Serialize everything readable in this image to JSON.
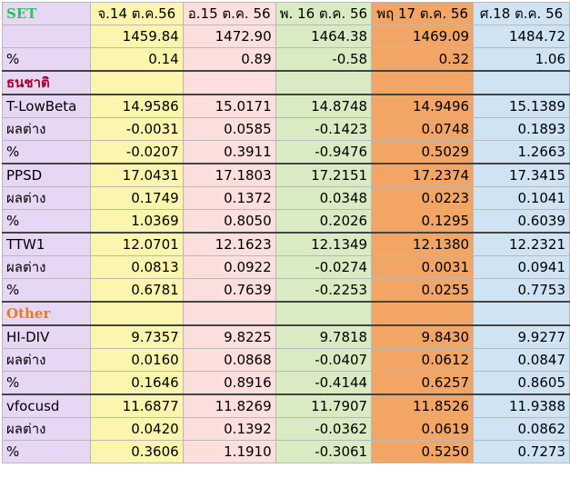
{
  "header": {
    "label": "SET",
    "dates": [
      "จ.14 ต.ค.56",
      "อ.15 ต.ค. 56",
      "พ. 16 ต.ค. 56",
      "พฤ 17 ต.ค. 56",
      "ศ.18 ต.ค. 56"
    ]
  },
  "set_row": {
    "label": "",
    "values": [
      "1459.84",
      "1472.90",
      "1464.38",
      "1469.09",
      "1484.72"
    ]
  },
  "set_pct": {
    "label": "%",
    "values": [
      "0.14",
      "0.89",
      "-0.58",
      "0.32",
      "1.06"
    ]
  },
  "section1": {
    "label": "ธนชาติ"
  },
  "section2": {
    "label": "Other"
  },
  "funds": [
    {
      "name": "T-LowBeta",
      "nav": [
        "14.9586",
        "15.0171",
        "14.8748",
        "14.9496",
        "15.1389"
      ],
      "diff_label": "ผลต่าง",
      "diff": [
        "-0.0031",
        "0.0585",
        "-0.1423",
        "0.0748",
        "0.1893"
      ],
      "pct_label": "%",
      "pct": [
        "-0.0207",
        "0.3911",
        "-0.9476",
        "0.5029",
        "1.2663"
      ]
    },
    {
      "name": "PPSD",
      "nav": [
        "17.0431",
        "17.1803",
        "17.2151",
        "17.2374",
        "17.3415"
      ],
      "diff_label": "ผลต่าง",
      "diff": [
        "0.1749",
        "0.1372",
        "0.0348",
        "0.0223",
        "0.1041"
      ],
      "pct_label": "%",
      "pct": [
        "1.0369",
        "0.8050",
        "0.2026",
        "0.1295",
        "0.6039"
      ]
    },
    {
      "name": "TTW1",
      "nav": [
        "12.0701",
        "12.1623",
        "12.1349",
        "12.1380",
        "12.2321"
      ],
      "diff_label": "ผลต่าง",
      "diff": [
        "0.0813",
        "0.0922",
        "-0.0274",
        "0.0031",
        "0.0941"
      ],
      "pct_label": "%",
      "pct": [
        "0.6781",
        "0.7639",
        "-0.2253",
        "0.0255",
        "0.7753"
      ]
    },
    {
      "name": "HI-DIV",
      "nav": [
        "9.7357",
        "9.8225",
        "9.7818",
        "9.8430",
        "9.9277"
      ],
      "diff_label": "ผลต่าง",
      "diff": [
        "0.0160",
        "0.0868",
        "-0.0407",
        "0.0612",
        "0.0847"
      ],
      "pct_label": "%",
      "pct": [
        "0.1646",
        "0.8916",
        "-0.4144",
        "0.6257",
        "0.8605"
      ]
    },
    {
      "name": "vfocusd",
      "nav": [
        "11.6877",
        "11.8269",
        "11.7907",
        "11.8526",
        "11.9388"
      ],
      "diff_label": "ผลต่าง",
      "diff": [
        "0.0420",
        "0.1392",
        "-0.0362",
        "0.0619",
        "0.0862"
      ],
      "pct_label": "%",
      "pct": [
        "0.3606",
        "1.1910",
        "-0.3061",
        "0.5250",
        "0.7273"
      ]
    }
  ],
  "colors": {
    "label_col": "#e7d7f5",
    "day1": "#fbf5ad",
    "day2": "#fcdfdc",
    "day3": "#d9ebc3",
    "day4": "#f2a564",
    "day5": "#cfe3f3",
    "set_label": "#27c45a",
    "section_label": "#a8002a",
    "other_label": "#e87c1c"
  }
}
